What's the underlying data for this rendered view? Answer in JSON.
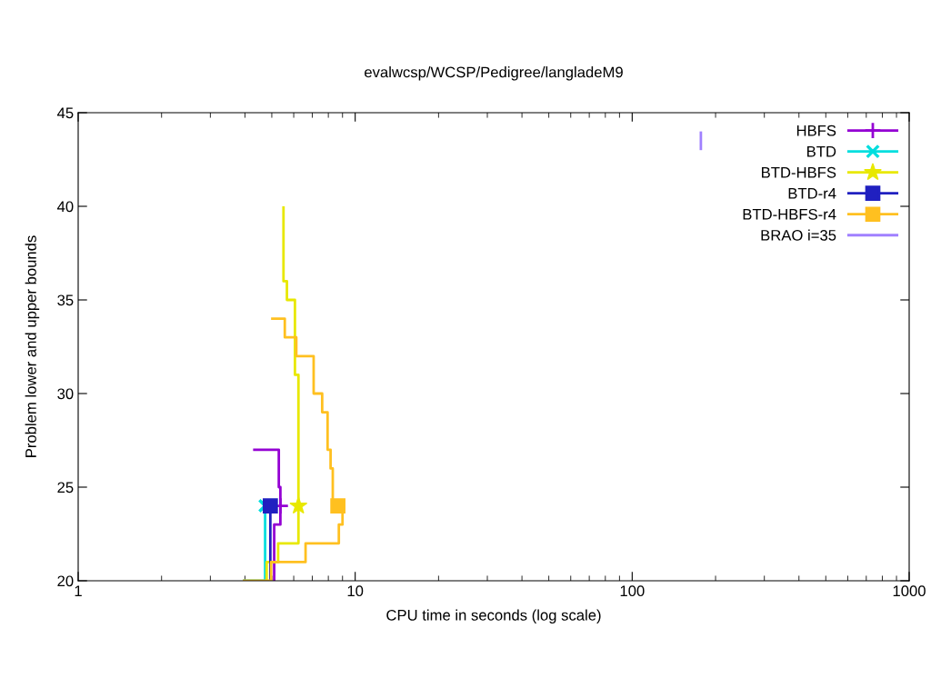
{
  "chart_data": {
    "type": "line",
    "title": "evalwcsp/WCSP/Pedigree/langladeM9",
    "xlabel": "CPU time in seconds (log scale)",
    "ylabel": "Problem lower and upper bounds",
    "log": "x",
    "xlim": [
      1,
      1000
    ],
    "xticks": [
      1,
      10,
      100,
      1000
    ],
    "ylim": [
      20,
      45
    ],
    "yticks": [
      20,
      25,
      30,
      35,
      40,
      45
    ],
    "grid": false,
    "legend": "top right",
    "series": [
      {
        "name": "HBFS",
        "color": "#9400d3",
        "x": [
          5.1,
          5.1,
          5.37,
          5.37,
          null,
          4.28,
          5.3,
          5.3,
          5.37,
          5.37
        ],
        "values": [
          20,
          23,
          23,
          24,
          null,
          27,
          27,
          25,
          25,
          24
        ]
      },
      {
        "name": "BTD",
        "color": "#00dede",
        "x": [
          3.93,
          4.73,
          4.73
        ],
        "values": [
          20,
          20,
          24
        ]
      },
      {
        "name": "BTD-HBFS",
        "color": "#e8e800",
        "x": [
          4.79,
          4.79,
          5.27,
          5.27,
          6.24,
          6.24,
          null,
          5.51,
          5.51,
          5.67,
          5.67,
          6.06,
          6.06,
          6.24,
          6.24
        ],
        "values": [
          20,
          21,
          21,
          22,
          22,
          24,
          null,
          40,
          36,
          36,
          35,
          35,
          31,
          31,
          24
        ]
      },
      {
        "name": "BTD-r4",
        "color": "#2020c0",
        "x": [
          4.94,
          4.94
        ],
        "values": [
          20,
          24
        ]
      },
      {
        "name": "BTD-HBFS-r4",
        "color": "#ffc020",
        "x": [
          3.93,
          4.97,
          4.97,
          6.62,
          6.62,
          8.73,
          8.73,
          9.0,
          9.0,
          null,
          4.97,
          5.57,
          5.57,
          6.13,
          6.13,
          7.08,
          7.08,
          7.6,
          7.6,
          7.95,
          7.95,
          8.15,
          8.15,
          8.3,
          8.3,
          8.66
        ],
        "values": [
          20,
          20,
          21,
          21,
          22,
          22,
          23,
          23,
          24,
          null,
          34,
          34,
          33,
          33,
          32,
          32,
          30,
          30,
          29,
          29,
          27,
          27,
          26,
          26,
          24,
          24
        ]
      },
      {
        "name": "BRAO i=35",
        "color": "#a080ff",
        "x": [
          177,
          177
        ],
        "values": [
          43,
          44
        ]
      },
      {
        "type": "scatter",
        "color": "#9400d3",
        "marker": "plus",
        "x": [
          5.37
        ],
        "values": [
          24
        ]
      },
      {
        "type": "scatter",
        "color": "#00dede",
        "marker": "cross",
        "x": [
          4.73
        ],
        "values": [
          24
        ]
      },
      {
        "type": "scatter",
        "color": "#e8e800",
        "marker": "star",
        "x": [
          6.24
        ],
        "values": [
          24
        ]
      },
      {
        "type": "scatter",
        "color": "#2020c0",
        "marker": "square",
        "x": [
          4.94
        ],
        "values": [
          24
        ]
      },
      {
        "type": "scatter",
        "color": "#ffc020",
        "marker": "square",
        "x": [
          8.66
        ],
        "values": [
          24
        ]
      }
    ]
  }
}
